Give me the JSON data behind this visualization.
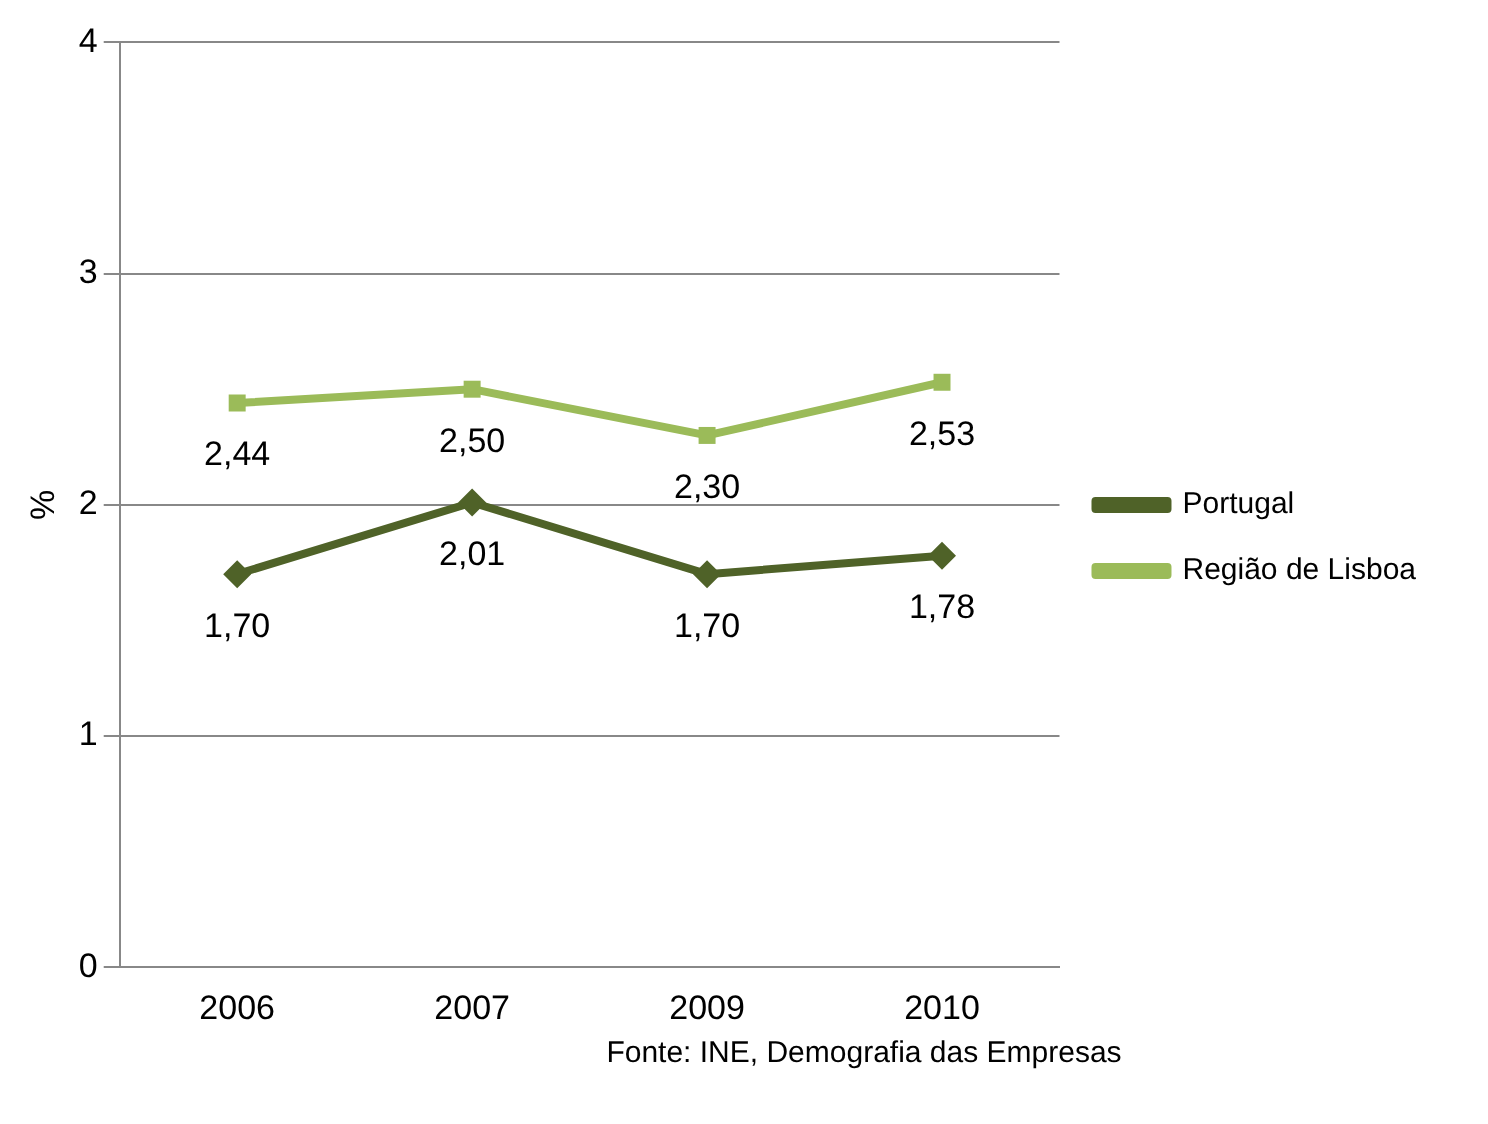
{
  "chart_data": {
    "type": "line",
    "ylabel": "%",
    "categories": [
      "2006",
      "2007",
      "2009",
      "2010"
    ],
    "series": [
      {
        "name": "Portugal",
        "color": "#4f6228",
        "marker": "diamond",
        "values": [
          1.7,
          2.01,
          1.7,
          1.78
        ],
        "value_labels": [
          "1,70",
          "2,01",
          "1,70",
          "1,78"
        ]
      },
      {
        "name": "Região de Lisboa",
        "color": "#9bbb59",
        "marker": "square",
        "values": [
          2.44,
          2.5,
          2.3,
          2.53
        ],
        "value_labels": [
          "2,44",
          "2,50",
          "2,30",
          "2,53"
        ]
      }
    ],
    "ylim": [
      0,
      4
    ],
    "yticks": [
      0,
      1,
      2,
      3,
      4
    ],
    "grid": "y",
    "legend": "right",
    "annotations": [
      "Fonte: INE, Demografia das Empresas"
    ]
  }
}
